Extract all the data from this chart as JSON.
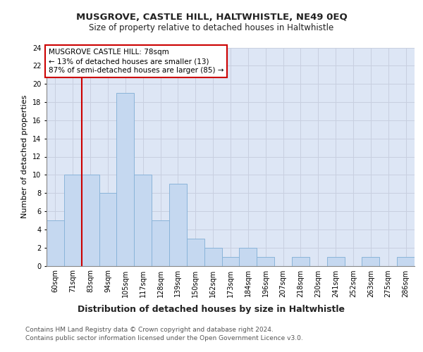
{
  "title": "MUSGROVE, CASTLE HILL, HALTWHISTLE, NE49 0EQ",
  "subtitle": "Size of property relative to detached houses in Haltwhistle",
  "xlabel_bottom": "Distribution of detached houses by size in Haltwhistle",
  "ylabel": "Number of detached properties",
  "categories": [
    "60sqm",
    "71sqm",
    "83sqm",
    "94sqm",
    "105sqm",
    "117sqm",
    "128sqm",
    "139sqm",
    "150sqm",
    "162sqm",
    "173sqm",
    "184sqm",
    "196sqm",
    "207sqm",
    "218sqm",
    "230sqm",
    "241sqm",
    "252sqm",
    "263sqm",
    "275sqm",
    "286sqm"
  ],
  "values": [
    5,
    10,
    10,
    8,
    19,
    10,
    5,
    9,
    3,
    2,
    1,
    2,
    1,
    0,
    1,
    0,
    1,
    0,
    1,
    0,
    1
  ],
  "bar_color": "#c5d8f0",
  "bar_edge_color": "#8ab4d9",
  "annotation_box_text": "MUSGROVE CASTLE HILL: 78sqm\n← 13% of detached houses are smaller (13)\n87% of semi-detached houses are larger (85) →",
  "annotation_box_color": "#ffffff",
  "annotation_box_edge_color": "#cc0000",
  "vline_x_index": 1.5,
  "vline_color": "#cc0000",
  "vline_linewidth": 1.5,
  "ylim": [
    0,
    24
  ],
  "yticks": [
    0,
    2,
    4,
    6,
    8,
    10,
    12,
    14,
    16,
    18,
    20,
    22,
    24
  ],
  "grid_color": "#c8cfe0",
  "background_color": "#dde6f5",
  "footer_line1": "Contains HM Land Registry data © Crown copyright and database right 2024.",
  "footer_line2": "Contains public sector information licensed under the Open Government Licence v3.0.",
  "title_fontsize": 9.5,
  "subtitle_fontsize": 8.5,
  "ylabel_fontsize": 8,
  "tick_fontsize": 7,
  "annotation_fontsize": 7.5,
  "footer_fontsize": 6.5,
  "xlabel_bottom_fontsize": 9
}
